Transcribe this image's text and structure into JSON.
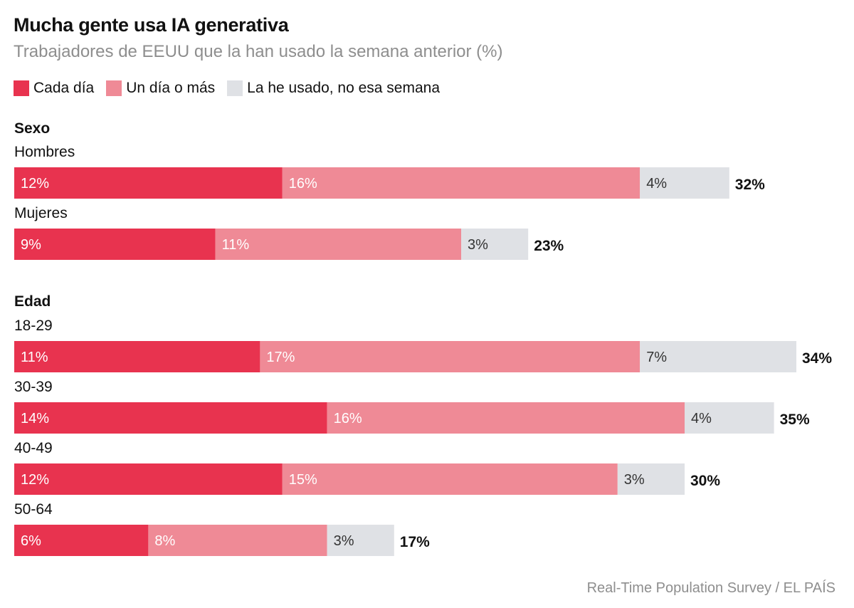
{
  "header": {
    "title": "Mucha gente usa IA generativa",
    "subtitle": "Trabajadores de EEUU que la han usado la semana anterior (%)"
  },
  "legend": [
    {
      "label": "Cada día",
      "color": "#e8334f"
    },
    {
      "label": "Un día o más",
      "color": "#ef8a96"
    },
    {
      "label": "La he usado, no esa semana",
      "color": "#dfe1e5"
    }
  ],
  "source": "Real-Time Population Survey / EL PAÍS",
  "chart_data": {
    "type": "bar",
    "orientation": "horizontal",
    "stacked": true,
    "series": [
      {
        "name": "Cada día",
        "color": "#e8334f",
        "label_color": "#ffffff"
      },
      {
        "name": "Un día o más",
        "color": "#ef8a96",
        "label_color": "#ffffff"
      },
      {
        "name": "La he usado, no esa semana",
        "color": "#dfe1e5",
        "label_color": "#333333"
      }
    ],
    "groups": [
      {
        "name": "Sexo",
        "rows": [
          {
            "label": "Hombres",
            "values": [
              12,
              16,
              4
            ],
            "total": "32%"
          },
          {
            "label": "Mujeres",
            "values": [
              9,
              11,
              3
            ],
            "total": "23%"
          }
        ]
      },
      {
        "name": "Edad",
        "rows": [
          {
            "label": "18-29",
            "values": [
              11,
              17,
              7
            ],
            "total": "34%"
          },
          {
            "label": "30-39",
            "values": [
              14,
              16,
              4
            ],
            "total": "35%"
          },
          {
            "label": "40-49",
            "values": [
              12,
              15,
              3
            ],
            "total": "30%"
          },
          {
            "label": "50-64",
            "values": [
              6,
              8,
              3
            ],
            "total": "17%"
          }
        ]
      }
    ],
    "value_suffix": "%"
  }
}
